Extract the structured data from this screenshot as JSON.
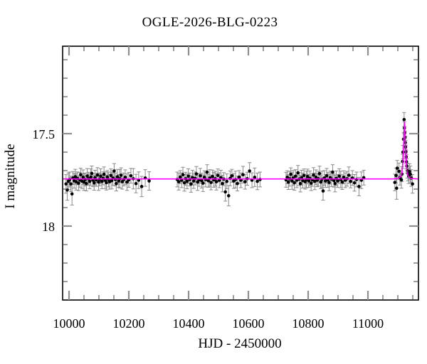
{
  "figure": {
    "title": "OGLE-2026-BLG-0223"
  },
  "chart_data": {
    "type": "scatter",
    "title": "OGLE-2026-BLG-0223",
    "xlabel": "HJD - 2450000",
    "ylabel": "I magnitude",
    "x_range": [
      9978.6,
      11169.0
    ],
    "y_range_mag": [
      17.027,
      18.4
    ],
    "y_axis_inverted": true,
    "grid": false,
    "legend": false,
    "x_major_ticks": [
      10000,
      10200,
      10400,
      10600,
      10800,
      11000
    ],
    "x_minor_step": 50,
    "y_major_ticks": [
      17.5,
      18
    ],
    "y_major_tick_labels": [
      "17.5",
      "18"
    ],
    "y_minor_step": 0.1,
    "baseline_mag": 17.745,
    "event_peak_hjd": 11122,
    "event_peak_mag": 17.44,
    "colors": {
      "point": "#000000",
      "error_bar": "#8a8a8a",
      "model": "#ff00ff",
      "frame": "#000000",
      "major_tick": "#8f8f8f",
      "minor_tick": "#3e3e3e"
    },
    "model_curve": [
      [
        9979,
        17.745
      ],
      [
        11080,
        17.745
      ],
      [
        11092,
        17.744
      ],
      [
        11100,
        17.742
      ],
      [
        11105,
        17.738
      ],
      [
        11108,
        17.733
      ],
      [
        11110,
        17.728
      ],
      [
        11112,
        17.718
      ],
      [
        11114,
        17.702
      ],
      [
        11115,
        17.69
      ],
      [
        11116,
        17.672
      ],
      [
        11117,
        17.648
      ],
      [
        11118,
        17.615
      ],
      [
        11119,
        17.573
      ],
      [
        11120,
        17.523
      ],
      [
        11121,
        17.472
      ],
      [
        11122,
        17.437
      ],
      [
        11123,
        17.468
      ],
      [
        11124,
        17.515
      ],
      [
        11125,
        17.562
      ],
      [
        11126,
        17.603
      ],
      [
        11127,
        17.638
      ],
      [
        11128,
        17.664
      ],
      [
        11129,
        17.684
      ],
      [
        11131,
        17.71
      ],
      [
        11133,
        17.724
      ],
      [
        11136,
        17.734
      ],
      [
        11140,
        17.74
      ],
      [
        11146,
        17.743
      ],
      [
        11169,
        17.745
      ]
    ],
    "points": [
      [
        9990,
        17.772,
        0.05
      ],
      [
        9994,
        17.805,
        0.055
      ],
      [
        9998,
        17.758,
        0.045
      ],
      [
        10002,
        17.748,
        0.04
      ],
      [
        10006,
        17.772,
        0.042
      ],
      [
        10010,
        17.826,
        0.06
      ],
      [
        10013,
        17.74,
        0.035
      ],
      [
        10017,
        17.755,
        0.04
      ],
      [
        10021,
        17.733,
        0.04
      ],
      [
        10024,
        17.76,
        0.045
      ],
      [
        10028,
        17.742,
        0.035
      ],
      [
        10032,
        17.768,
        0.04
      ],
      [
        10036,
        17.75,
        0.04
      ],
      [
        10039,
        17.722,
        0.035
      ],
      [
        10043,
        17.757,
        0.04
      ],
      [
        10047,
        17.736,
        0.04
      ],
      [
        10050,
        17.762,
        0.045
      ],
      [
        10054,
        17.748,
        0.035
      ],
      [
        10058,
        17.77,
        0.04
      ],
      [
        10061,
        17.729,
        0.04
      ],
      [
        10065,
        17.744,
        0.035
      ],
      [
        10069,
        17.758,
        0.04
      ],
      [
        10073,
        17.735,
        0.045
      ],
      [
        10076,
        17.715,
        0.04
      ],
      [
        10080,
        17.752,
        0.035
      ],
      [
        10084,
        17.766,
        0.04
      ],
      [
        10087,
        17.738,
        0.04
      ],
      [
        10091,
        17.75,
        0.035
      ],
      [
        10095,
        17.724,
        0.04
      ],
      [
        10099,
        17.762,
        0.045
      ],
      [
        10102,
        17.747,
        0.035
      ],
      [
        10106,
        17.73,
        0.04
      ],
      [
        10110,
        17.758,
        0.04
      ],
      [
        10114,
        17.742,
        0.035
      ],
      [
        10117,
        17.72,
        0.04
      ],
      [
        10121,
        17.752,
        0.045
      ],
      [
        10125,
        17.765,
        0.04
      ],
      [
        10128,
        17.735,
        0.035
      ],
      [
        10132,
        17.748,
        0.04
      ],
      [
        10136,
        17.76,
        0.04
      ],
      [
        10140,
        17.726,
        0.035
      ],
      [
        10143,
        17.754,
        0.045
      ],
      [
        10147,
        17.74,
        0.04
      ],
      [
        10151,
        17.702,
        0.04
      ],
      [
        10155,
        17.748,
        0.035
      ],
      [
        10158,
        17.77,
        0.04
      ],
      [
        10162,
        17.733,
        0.04
      ],
      [
        10166,
        17.756,
        0.035
      ],
      [
        10170,
        17.744,
        0.05
      ],
      [
        10174,
        17.725,
        0.04
      ],
      [
        10178,
        17.76,
        0.04
      ],
      [
        10183,
        17.748,
        0.035
      ],
      [
        10188,
        17.736,
        0.04
      ],
      [
        10194,
        17.762,
        0.045
      ],
      [
        10200,
        17.75,
        0.04
      ],
      [
        10207,
        17.728,
        0.04
      ],
      [
        10215,
        17.744,
        0.055
      ],
      [
        10224,
        17.77,
        0.05
      ],
      [
        10233,
        17.752,
        0.045
      ],
      [
        10243,
        17.786,
        0.055
      ],
      [
        10255,
        17.74,
        0.045
      ],
      [
        10268,
        17.756,
        0.05
      ],
      [
        10362,
        17.748,
        0.04
      ],
      [
        10367,
        17.76,
        0.045
      ],
      [
        10372,
        17.735,
        0.035
      ],
      [
        10377,
        17.752,
        0.04
      ],
      [
        10381,
        17.722,
        0.04
      ],
      [
        10386,
        17.766,
        0.045
      ],
      [
        10390,
        17.744,
        0.035
      ],
      [
        10395,
        17.758,
        0.04
      ],
      [
        10399,
        17.73,
        0.04
      ],
      [
        10404,
        17.748,
        0.035
      ],
      [
        10408,
        17.772,
        0.045
      ],
      [
        10413,
        17.738,
        0.04
      ],
      [
        10417,
        17.756,
        0.04
      ],
      [
        10422,
        17.742,
        0.035
      ],
      [
        10426,
        17.718,
        0.04
      ],
      [
        10430,
        17.762,
        0.045
      ],
      [
        10435,
        17.75,
        0.035
      ],
      [
        10439,
        17.728,
        0.04
      ],
      [
        10444,
        17.754,
        0.04
      ],
      [
        10448,
        17.768,
        0.045
      ],
      [
        10453,
        17.736,
        0.035
      ],
      [
        10457,
        17.748,
        0.04
      ],
      [
        10462,
        17.708,
        0.04
      ],
      [
        10466,
        17.755,
        0.035
      ],
      [
        10471,
        17.74,
        0.045
      ],
      [
        10475,
        17.764,
        0.04
      ],
      [
        10480,
        17.732,
        0.035
      ],
      [
        10484,
        17.75,
        0.04
      ],
      [
        10489,
        17.744,
        0.04
      ],
      [
        10493,
        17.76,
        0.045
      ],
      [
        10498,
        17.726,
        0.035
      ],
      [
        10503,
        17.752,
        0.04
      ],
      [
        10508,
        17.738,
        0.04
      ],
      [
        10513,
        17.77,
        0.045
      ],
      [
        10518,
        17.746,
        0.035
      ],
      [
        10523,
        17.815,
        0.05
      ],
      [
        10528,
        17.758,
        0.04
      ],
      [
        10534,
        17.836,
        0.055
      ],
      [
        10539,
        17.742,
        0.04
      ],
      [
        10545,
        17.728,
        0.035
      ],
      [
        10551,
        17.756,
        0.04
      ],
      [
        10557,
        17.748,
        0.045
      ],
      [
        10563,
        17.77,
        0.04
      ],
      [
        10569,
        17.735,
        0.035
      ],
      [
        10575,
        17.752,
        0.04
      ],
      [
        10582,
        17.722,
        0.045
      ],
      [
        10589,
        17.76,
        0.04
      ],
      [
        10596,
        17.744,
        0.035
      ],
      [
        10604,
        17.702,
        0.045
      ],
      [
        10612,
        17.752,
        0.04
      ],
      [
        10621,
        17.736,
        0.05
      ],
      [
        10630,
        17.758,
        0.045
      ],
      [
        10639,
        17.748,
        0.04
      ],
      [
        10726,
        17.75,
        0.04
      ],
      [
        10730,
        17.736,
        0.035
      ],
      [
        10734,
        17.762,
        0.04
      ],
      [
        10738,
        17.744,
        0.04
      ],
      [
        10742,
        17.72,
        0.035
      ],
      [
        10746,
        17.756,
        0.045
      ],
      [
        10750,
        17.74,
        0.04
      ],
      [
        10754,
        17.766,
        0.04
      ],
      [
        10758,
        17.73,
        0.035
      ],
      [
        10762,
        17.752,
        0.04
      ],
      [
        10766,
        17.712,
        0.04
      ],
      [
        10770,
        17.746,
        0.035
      ],
      [
        10774,
        17.77,
        0.045
      ],
      [
        10778,
        17.738,
        0.04
      ],
      [
        10782,
        17.754,
        0.04
      ],
      [
        10786,
        17.726,
        0.035
      ],
      [
        10790,
        17.76,
        0.04
      ],
      [
        10794,
        17.748,
        0.045
      ],
      [
        10798,
        17.732,
        0.04
      ],
      [
        10802,
        17.756,
        0.035
      ],
      [
        10806,
        17.742,
        0.04
      ],
      [
        10810,
        17.768,
        0.04
      ],
      [
        10814,
        17.75,
        0.035
      ],
      [
        10818,
        17.724,
        0.04
      ],
      [
        10822,
        17.758,
        0.045
      ],
      [
        10826,
        17.736,
        0.04
      ],
      [
        10830,
        17.752,
        0.035
      ],
      [
        10834,
        17.744,
        0.04
      ],
      [
        10838,
        17.716,
        0.04
      ],
      [
        10842,
        17.762,
        0.035
      ],
      [
        10846,
        17.748,
        0.045
      ],
      [
        10850,
        17.81,
        0.05
      ],
      [
        10854,
        17.74,
        0.04
      ],
      [
        10858,
        17.756,
        0.035
      ],
      [
        10862,
        17.728,
        0.04
      ],
      [
        10866,
        17.75,
        0.04
      ],
      [
        10870,
        17.764,
        0.045
      ],
      [
        10874,
        17.738,
        0.035
      ],
      [
        10878,
        17.746,
        0.04
      ],
      [
        10882,
        17.708,
        0.04
      ],
      [
        10886,
        17.754,
        0.035
      ],
      [
        10890,
        17.77,
        0.045
      ],
      [
        10894,
        17.742,
        0.04
      ],
      [
        10899,
        17.756,
        0.035
      ],
      [
        10904,
        17.73,
        0.04
      ],
      [
        10909,
        17.748,
        0.045
      ],
      [
        10914,
        17.762,
        0.04
      ],
      [
        10919,
        17.736,
        0.035
      ],
      [
        10924,
        17.752,
        0.04
      ],
      [
        10930,
        17.744,
        0.04
      ],
      [
        10936,
        17.725,
        0.045
      ],
      [
        10942,
        17.758,
        0.035
      ],
      [
        10948,
        17.74,
        0.04
      ],
      [
        10955,
        17.766,
        0.045
      ],
      [
        10962,
        17.748,
        0.04
      ],
      [
        10970,
        17.786,
        0.05
      ],
      [
        10978,
        17.752,
        0.045
      ],
      [
        10986,
        17.738,
        0.04
      ],
      [
        11090,
        17.764,
        0.045
      ],
      [
        11094,
        17.726,
        0.04
      ],
      [
        11096,
        17.795,
        0.06
      ],
      [
        11098,
        17.687,
        0.042
      ],
      [
        11104,
        17.704,
        0.045
      ],
      [
        11107,
        17.738,
        0.04
      ],
      [
        11112,
        17.75,
        0.045
      ],
      [
        11114,
        17.719,
        0.04
      ],
      [
        11116,
        17.65,
        0.038
      ],
      [
        11117,
        17.6,
        0.036
      ],
      [
        11119,
        17.53,
        0.034
      ],
      [
        11121,
        17.424,
        0.038
      ],
      [
        11122,
        17.47,
        0.034
      ],
      [
        11123,
        17.495,
        0.034
      ],
      [
        11124,
        17.52,
        0.034
      ],
      [
        11125,
        17.548,
        0.035
      ],
      [
        11126,
        17.572,
        0.035
      ],
      [
        11127,
        17.598,
        0.036
      ],
      [
        11128,
        17.625,
        0.036
      ],
      [
        11129,
        17.652,
        0.038
      ],
      [
        11130,
        17.675,
        0.038
      ],
      [
        11132,
        17.7,
        0.04
      ],
      [
        11134,
        17.715,
        0.04
      ],
      [
        11136,
        17.728,
        0.042
      ],
      [
        11139,
        17.705,
        0.042
      ],
      [
        11142,
        17.72,
        0.045
      ],
      [
        11145,
        17.74,
        0.045
      ],
      [
        11149,
        17.772,
        0.05
      ]
    ]
  }
}
